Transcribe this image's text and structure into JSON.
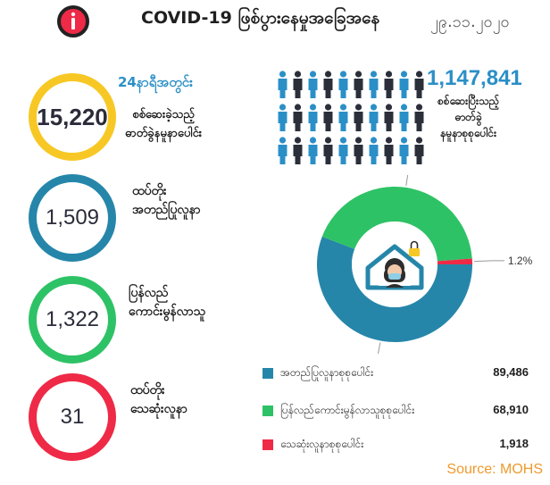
{
  "header": {
    "title": "COVID-19 ဖြစ်ပွားနေမှုအခြေအနေ",
    "date": "၂၉.၁၁.၂၀၂၀",
    "logo_icon": "covid-info-icon"
  },
  "stats": {
    "tested_24h": {
      "value": "15,220",
      "title": "24နာရီအတွင်း",
      "caption_line1": "စစ်ဆေးခဲ့သည့်",
      "caption_line2": "ဓာတ်ခွဲနမူနာပေါင်း",
      "color": "#f7c825"
    },
    "confirmed": {
      "value": "1,509",
      "label_line1": "ထပ်တိုး",
      "label_line2": "အတည်ပြုလူနာ",
      "color": "#2686a9"
    },
    "recovered": {
      "value": "1,322",
      "label_line1": "ပြန်လည်",
      "label_line2": "ကောင်းမွန်လာသူ",
      "color": "#2ec266"
    },
    "deaths": {
      "value": "31",
      "label_line1": "ထပ်တိုး",
      "label_line2": "သေဆုံးလူနာ",
      "color": "#ee2a46"
    }
  },
  "total_tested": {
    "value": "1,147,841",
    "caption_line1": "စစ်ဆေးပြီးသည့်",
    "caption_line2": "ဓာတ်ခွဲ",
    "caption_line3": "နမူနာစုစုပေါင်း",
    "icon": "people-icon"
  },
  "chart_data": {
    "type": "pie",
    "style": "donut",
    "center_icon": "quarantined-person-icon",
    "categories": [
      "အတည်ပြုလူနာစုစုပေါင်း",
      "ပြန်လည်ကောင်းမွန်လာသူစုစုပေါင်း",
      "သေဆုံးလူနာစုစုပေါင်း"
    ],
    "values": [
      89486,
      68910,
      1918
    ],
    "value_labels": [
      "89,486",
      "68,910",
      "1,918"
    ],
    "percent_labels": [
      "55.8%",
      "43.0%",
      "1.2%"
    ],
    "colors": [
      "#2686a9",
      "#2ec266",
      "#ee2a46"
    ],
    "legend_position": "bottom"
  },
  "source": "Source: MOHS"
}
